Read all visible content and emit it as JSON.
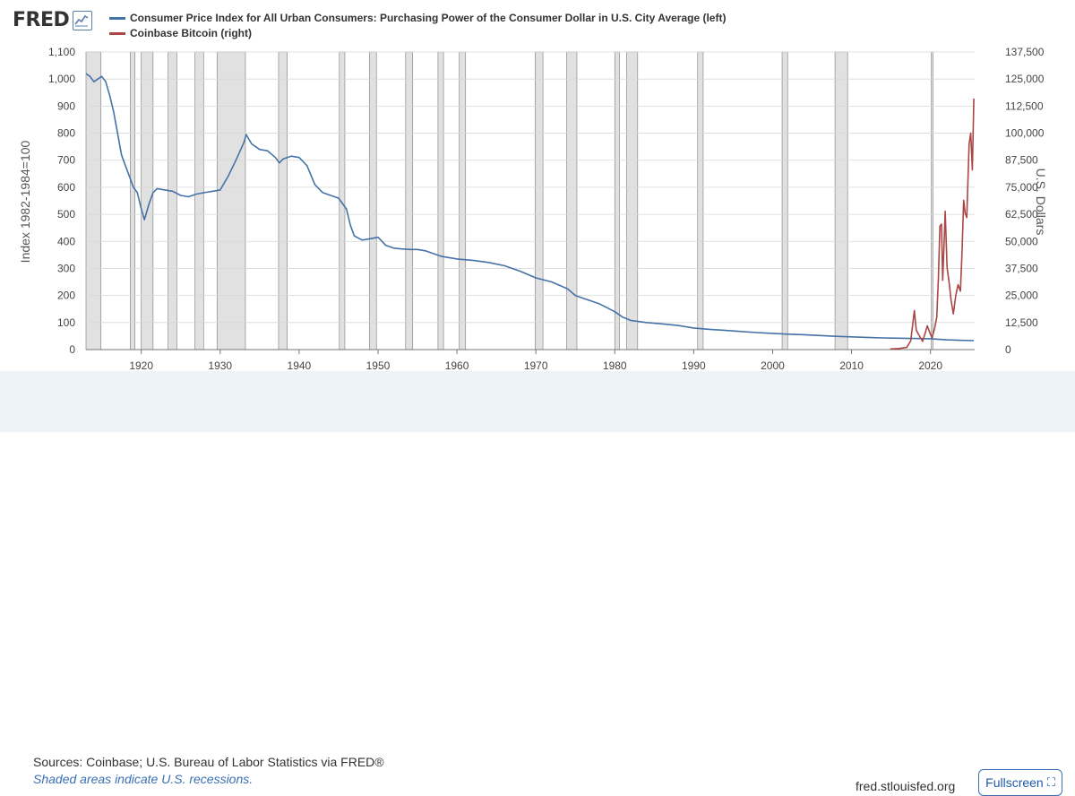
{
  "logo": {
    "text": "FRED",
    "icon": "chart-line-icon"
  },
  "legend": [
    {
      "label": "Consumer Price Index for All Urban Consumers: Purchasing Power of the Consumer Dollar in U.S. City Average (left)",
      "color": "#4572a7"
    },
    {
      "label": "Coinbase Bitcoin (right)",
      "color": "#aa4643"
    }
  ],
  "footer": {
    "sources": "Sources: Coinbase; U.S. Bureau of Labor Statistics via FRED®",
    "shade_note": "Shaded areas indicate U.S. recessions.",
    "site": "fred.stlouisfed.org",
    "fullscreen_label": "Fullscreen",
    "fullscreen_icon": "expand-corners-icon"
  },
  "chart_data": {
    "type": "line",
    "ylabel": "Index 1982-1984=100",
    "y2label": "U.S. Dollars",
    "xlim": [
      1913,
      2025.6
    ],
    "ylim": [
      0,
      1100
    ],
    "y2lim": [
      0,
      137500
    ],
    "x_ticks": [
      "1920",
      "1930",
      "1940",
      "1950",
      "1960",
      "1970",
      "1980",
      "1990",
      "2000",
      "2010",
      "2020"
    ],
    "y_ticks": [
      "0",
      "100",
      "200",
      "300",
      "400",
      "500",
      "600",
      "700",
      "800",
      "900",
      "1,000",
      "1,100"
    ],
    "y2_ticks": [
      "0",
      "12,500",
      "25,000",
      "37,500",
      "50,000",
      "62,500",
      "75,000",
      "87,500",
      "100,000",
      "112,500",
      "125,000",
      "137,500"
    ],
    "grid": "horizontal",
    "recessions": [
      [
        1913.0,
        1914.9
      ],
      [
        1918.6,
        1919.2
      ],
      [
        1920.0,
        1921.5
      ],
      [
        1923.4,
        1924.5
      ],
      [
        1926.8,
        1927.9
      ],
      [
        1929.6,
        1933.2
      ],
      [
        1937.4,
        1938.5
      ],
      [
        1945.1,
        1945.8
      ],
      [
        1948.9,
        1949.8
      ],
      [
        1953.5,
        1954.4
      ],
      [
        1957.6,
        1958.3
      ],
      [
        1960.3,
        1961.1
      ],
      [
        1969.9,
        1970.9
      ],
      [
        1973.9,
        1975.2
      ],
      [
        1980.0,
        1980.6
      ],
      [
        1981.5,
        1982.9
      ],
      [
        1990.5,
        1991.2
      ],
      [
        2001.2,
        2001.9
      ],
      [
        2007.9,
        2009.5
      ],
      [
        2020.1,
        2020.3
      ]
    ],
    "series": [
      {
        "name": "Consumer Price Index for All Urban Consumers: Purchasing Power of the Consumer Dollar in U.S. City Average",
        "axis": "left",
        "color": "#4572a7",
        "x": [
          1913.0,
          1913.5,
          1914.0,
          1914.5,
          1915.0,
          1915.5,
          1916.0,
          1916.5,
          1917.0,
          1917.5,
          1918.0,
          1918.5,
          1919.0,
          1919.5,
          1920.0,
          1920.4,
          1921.0,
          1921.5,
          1922.0,
          1923.0,
          1924.0,
          1925.0,
          1926.0,
          1927.0,
          1928.0,
          1929.0,
          1930.0,
          1931.0,
          1932.0,
          1933.0,
          1933.3,
          1934.0,
          1935.0,
          1936.0,
          1937.0,
          1937.5,
          1938.0,
          1939.0,
          1940.0,
          1941.0,
          1942.0,
          1943.0,
          1944.0,
          1945.0,
          1946.0,
          1946.5,
          1947.0,
          1948.0,
          1949.0,
          1950.0,
          1951.0,
          1952.0,
          1953.0,
          1954.0,
          1955.0,
          1956.0,
          1957.0,
          1958.0,
          1959.0,
          1960.0,
          1962.0,
          1964.0,
          1966.0,
          1968.0,
          1970.0,
          1972.0,
          1974.0,
          1975.0,
          1976.0,
          1978.0,
          1980.0,
          1981.0,
          1982.0,
          1984.0,
          1986.0,
          1988.0,
          1990.0,
          1992.0,
          1994.0,
          1996.0,
          1998.0,
          2000.0,
          2002.0,
          2004.0,
          2006.0,
          2008.0,
          2010.0,
          2012.0,
          2014.0,
          2016.0,
          2018.0,
          2020.0,
          2022.0,
          2024.0,
          2025.5
        ],
        "values": [
          1020,
          1010,
          990,
          1000,
          1010,
          990,
          940,
          880,
          800,
          720,
          680,
          640,
          600,
          580,
          520,
          480,
          540,
          580,
          595,
          590,
          585,
          570,
          565,
          575,
          580,
          585,
          590,
          640,
          700,
          765,
          795,
          760,
          740,
          735,
          710,
          690,
          705,
          715,
          710,
          680,
          610,
          580,
          570,
          560,
          520,
          460,
          420,
          405,
          410,
          415,
          385,
          375,
          372,
          370,
          370,
          365,
          355,
          345,
          340,
          335,
          330,
          322,
          310,
          290,
          265,
          250,
          225,
          200,
          190,
          170,
          140,
          120,
          108,
          100,
          95,
          89,
          80,
          75,
          71,
          67,
          63,
          60,
          57,
          55,
          52,
          49,
          47,
          45,
          43,
          42,
          41,
          40,
          36,
          34,
          33
        ]
      },
      {
        "name": "Coinbase Bitcoin",
        "axis": "right",
        "color": "#aa4643",
        "x": [
          2014.9,
          2016.0,
          2017.0,
          2017.5,
          2017.96,
          2018.2,
          2018.5,
          2019.0,
          2019.4,
          2019.6,
          2020.0,
          2020.2,
          2020.5,
          2020.8,
          2021.0,
          2021.2,
          2021.4,
          2021.55,
          2021.7,
          2021.87,
          2022.1,
          2022.4,
          2022.6,
          2022.9,
          2023.2,
          2023.5,
          2023.8,
          2024.0,
          2024.2,
          2024.4,
          2024.6,
          2024.9,
          2025.1,
          2025.3,
          2025.5
        ],
        "values": [
          300,
          500,
          1000,
          4000,
          18000,
          9000,
          7000,
          3800,
          8500,
          11000,
          7000,
          5500,
          9500,
          15000,
          33000,
          57000,
          58000,
          32000,
          46000,
          64000,
          38000,
          30000,
          23000,
          16500,
          25000,
          30000,
          27000,
          45000,
          69000,
          63000,
          61000,
          95000,
          100000,
          83000,
          116000
        ]
      }
    ]
  }
}
